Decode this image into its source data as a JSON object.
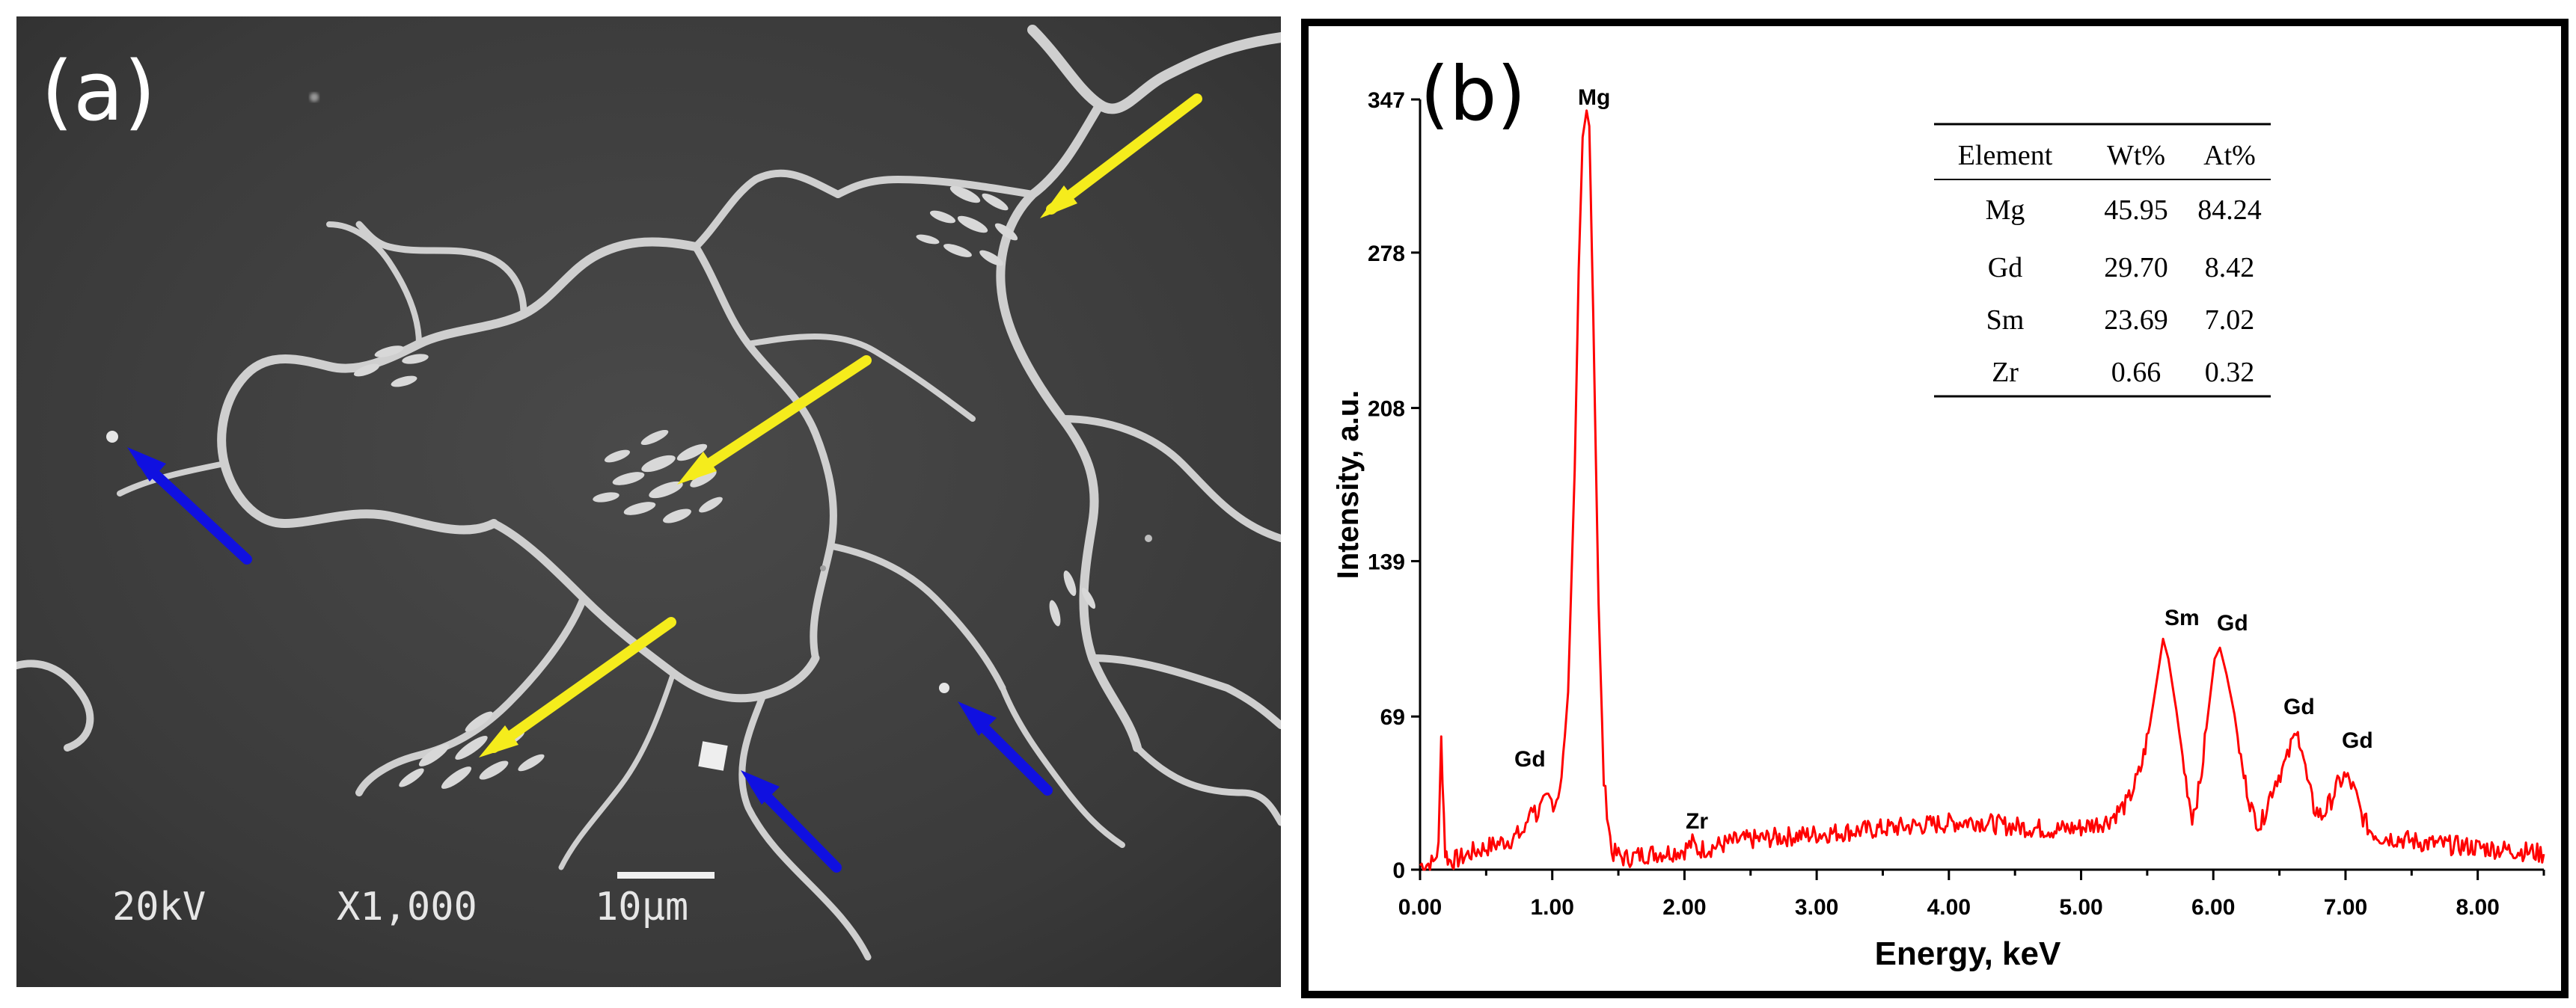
{
  "panel_a": {
    "label": "(a)",
    "caption": {
      "voltage": "20kV",
      "magnification": "X1,000",
      "scale": "10μm"
    },
    "arrows": {
      "yellow": 3,
      "blue": 3,
      "yellow_color": "#f5ec1c",
      "blue_color": "#1010e0"
    }
  },
  "panel_b": {
    "label": "(b)",
    "table": {
      "headers": [
        "Element",
        "Wt%",
        "At%"
      ],
      "rows": [
        [
          "Mg",
          "45.95",
          "84.24"
        ],
        [
          "Gd",
          "29.70",
          "8.42"
        ],
        [
          "Sm",
          "23.69",
          "7.02"
        ],
        [
          "Zr",
          "0.66",
          "0.32"
        ]
      ]
    },
    "peak_labels": [
      "Mg",
      "Gd",
      "Zr",
      "Sm",
      "Gd",
      "Gd",
      "Gd"
    ]
  },
  "chart_data": {
    "type": "line",
    "title": "",
    "xlabel": "Energy, keV",
    "ylabel": "Intensity, a.u.",
    "xlim": [
      0,
      8.5
    ],
    "ylim": [
      0,
      347
    ],
    "x_ticks": [
      "0.00",
      "1.00",
      "2.00",
      "3.00",
      "4.00",
      "5.00",
      "6.00",
      "7.00",
      "8.00"
    ],
    "y_ticks": [
      "0",
      "69",
      "139",
      "208",
      "278",
      "347"
    ],
    "line_color": "#ff0000",
    "series": [
      {
        "x": [
          0.0,
          0.1,
          0.14,
          0.16,
          0.19,
          0.22,
          0.3,
          0.4,
          0.5,
          0.6,
          0.7,
          0.8,
          0.84,
          0.88,
          0.92,
          0.97,
          1.02,
          1.07,
          1.12,
          1.17,
          1.2,
          1.23,
          1.26,
          1.28,
          1.31,
          1.35,
          1.39,
          1.45,
          1.55,
          1.7,
          1.9,
          2.0,
          2.06,
          2.1,
          2.2,
          2.4,
          2.6,
          2.8,
          3.0,
          3.2,
          3.4,
          3.6,
          3.8,
          4.0,
          4.2,
          4.4,
          4.6,
          4.8,
          5.0,
          5.2,
          5.35,
          5.45,
          5.52,
          5.58,
          5.62,
          5.66,
          5.72,
          5.78,
          5.84,
          5.9,
          5.96,
          6.01,
          6.05,
          6.1,
          6.16,
          6.22,
          6.3,
          6.36,
          6.42,
          6.47,
          6.52,
          6.56,
          6.6,
          6.64,
          6.67,
          6.71,
          6.76,
          6.82,
          6.88,
          6.94,
          6.99,
          7.03,
          7.07,
          7.12,
          7.18,
          7.26,
          7.4,
          7.6,
          7.8,
          8.0,
          8.2,
          8.4,
          8.5
        ],
        "y": [
          2,
          3,
          10,
          60,
          8,
          4,
          5,
          8,
          10,
          12,
          14,
          18,
          30,
          25,
          28,
          32,
          30,
          40,
          80,
          180,
          270,
          330,
          342,
          335,
          250,
          120,
          40,
          8,
          5,
          7,
          8,
          9,
          12,
          9,
          10,
          13,
          14,
          15,
          16,
          17,
          18,
          19,
          20,
          21,
          22,
          20,
          19,
          18,
          19,
          22,
          30,
          45,
          65,
          88,
          104,
          95,
          72,
          45,
          24,
          38,
          70,
          95,
          100,
          88,
          70,
          45,
          25,
          20,
          32,
          40,
          45,
          50,
          58,
          62,
          55,
          40,
          28,
          24,
          30,
          38,
          42,
          40,
          35,
          25,
          18,
          15,
          14,
          12,
          11,
          10,
          9,
          8,
          7
        ]
      }
    ]
  }
}
